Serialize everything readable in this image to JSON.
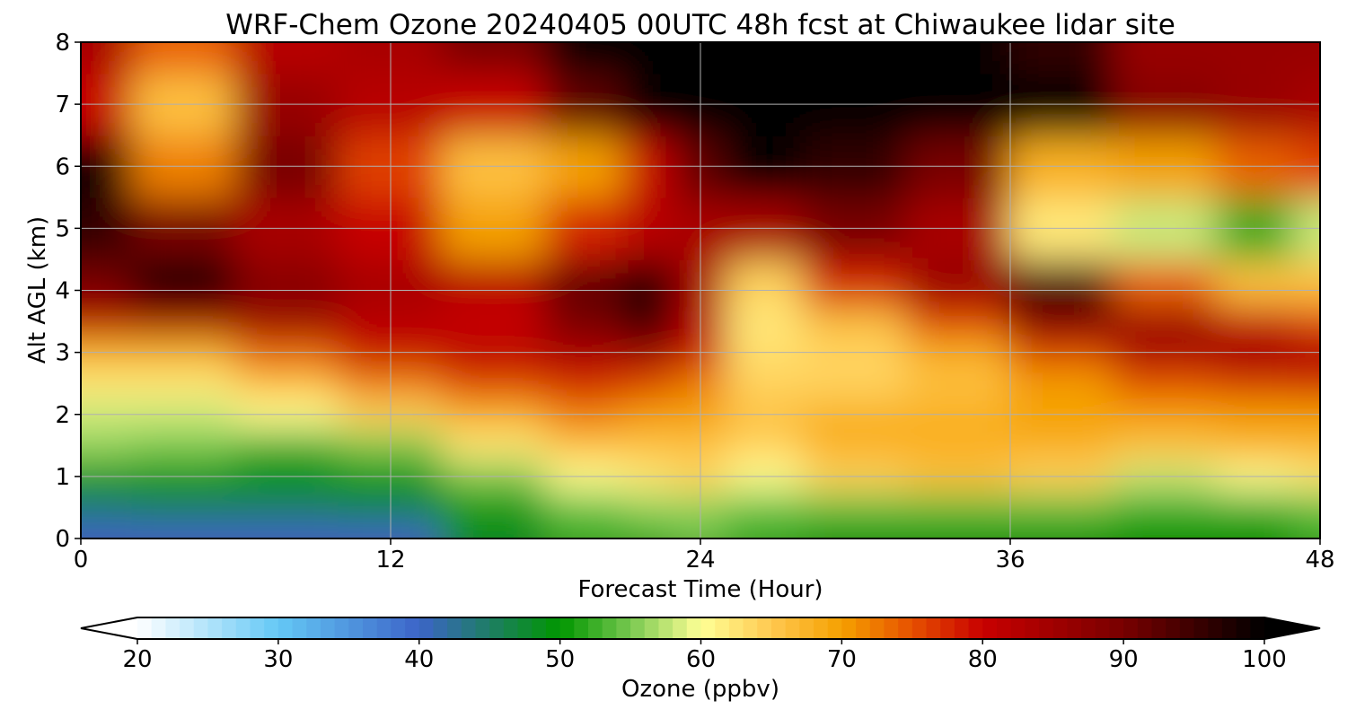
{
  "chart_data": {
    "type": "heatmap",
    "title": "WRF-Chem Ozone  20240405 00UTC 48h fcst at Chiwaukee lidar site",
    "xlabel": "Forecast Time (Hour)",
    "ylabel": "Alt AGL (km)",
    "xlim": [
      0,
      48
    ],
    "ylim": [
      0,
      8
    ],
    "x_ticks": [
      "0",
      "12",
      "24",
      "36",
      "48"
    ],
    "y_ticks": [
      "0",
      "1",
      "2",
      "3",
      "4",
      "5",
      "6",
      "7",
      "8"
    ],
    "grid": true,
    "colorbar": {
      "label": "Ozone  (ppbv)",
      "range": [
        20,
        100
      ],
      "ticks": [
        "20",
        "30",
        "40",
        "50",
        "60",
        "70",
        "80",
        "90",
        "100"
      ],
      "extend": "both",
      "colors": [
        {
          "value": 20,
          "color": "#ffffff"
        },
        {
          "value": 30,
          "color": "#64c8f5"
        },
        {
          "value": 40,
          "color": "#3c64c8"
        },
        {
          "value": 50,
          "color": "#009600"
        },
        {
          "value": 55,
          "color": "#78c850"
        },
        {
          "value": 60,
          "color": "#ffff96"
        },
        {
          "value": 65,
          "color": "#ffc850"
        },
        {
          "value": 70,
          "color": "#f5a000"
        },
        {
          "value": 75,
          "color": "#e65000"
        },
        {
          "value": 80,
          "color": "#c80000"
        },
        {
          "value": 90,
          "color": "#780000"
        },
        {
          "value": 100,
          "color": "#000000"
        }
      ]
    },
    "x": [
      0,
      4,
      8,
      12,
      16,
      20,
      22,
      24,
      26,
      30,
      34,
      38,
      42,
      46,
      48
    ],
    "y": [
      0,
      0.5,
      1,
      1.5,
      2,
      2.5,
      3,
      3.5,
      4,
      5,
      6,
      7,
      8
    ],
    "z": [
      [
        40,
        40,
        40,
        40,
        48,
        52,
        52,
        54,
        52,
        50,
        50,
        50,
        50,
        50,
        52
      ],
      [
        44,
        45,
        45,
        46,
        50,
        54,
        56,
        56,
        54,
        54,
        54,
        54,
        52,
        52,
        54
      ],
      [
        50,
        50,
        49,
        50,
        55,
        60,
        62,
        64,
        60,
        64,
        66,
        64,
        58,
        60,
        62
      ],
      [
        56,
        55,
        52,
        55,
        62,
        66,
        66,
        66,
        64,
        68,
        68,
        68,
        66,
        68,
        68
      ],
      [
        58,
        58,
        60,
        64,
        68,
        72,
        70,
        70,
        66,
        68,
        68,
        70,
        70,
        70,
        70
      ],
      [
        62,
        62,
        66,
        72,
        76,
        78,
        76,
        72,
        64,
        64,
        66,
        70,
        75,
        77,
        78
      ],
      [
        68,
        68,
        74,
        80,
        82,
        84,
        86,
        80,
        63,
        64,
        68,
        76,
        84,
        86,
        84
      ],
      [
        82,
        84,
        86,
        82,
        80,
        90,
        96,
        82,
        62,
        66,
        76,
        90,
        86,
        80,
        76
      ],
      [
        90,
        100,
        88,
        84,
        82,
        92,
        98,
        84,
        64,
        78,
        86,
        94,
        74,
        66,
        66
      ],
      [
        96,
        90,
        84,
        80,
        70,
        78,
        82,
        84,
        84,
        90,
        84,
        62,
        58,
        52,
        58
      ],
      [
        98,
        72,
        90,
        76,
        66,
        70,
        80,
        92,
        100,
        96,
        90,
        68,
        70,
        74,
        76
      ],
      [
        80,
        66,
        86,
        82,
        80,
        92,
        100,
        100,
        100,
        100,
        100,
        100,
        88,
        86,
        84
      ],
      [
        84,
        74,
        82,
        84,
        90,
        100,
        100,
        100,
        100,
        100,
        100,
        96,
        86,
        86,
        86
      ]
    ]
  }
}
